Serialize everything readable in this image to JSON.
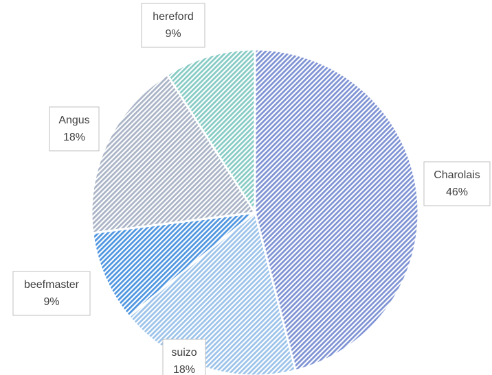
{
  "chart_data": {
    "type": "pie",
    "categories": [
      "Charolais",
      "suizo",
      "beefmaster",
      "Angus",
      "hereford"
    ],
    "values": [
      46,
      18,
      9,
      18,
      9
    ],
    "value_labels": [
      "46%",
      "18%",
      "9%",
      "18%",
      "9%"
    ],
    "colors": [
      "#7f93d4",
      "#9cc3ea",
      "#4f96e0",
      "#aab4c6",
      "#86cbc4"
    ]
  }
}
